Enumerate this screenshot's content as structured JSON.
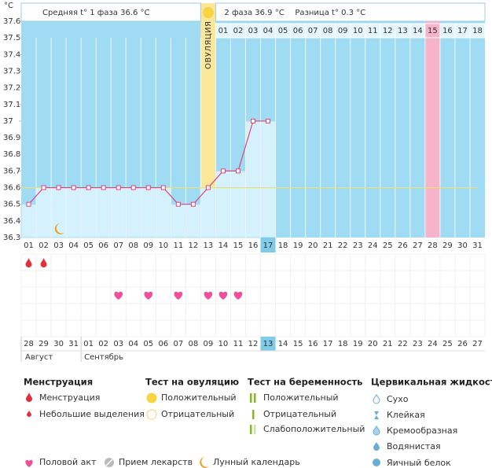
{
  "chart_data": {
    "type": "line",
    "y_unit": "°C",
    "header": {
      "phase1": "Средняя t° 1 фаза 36.6 °C",
      "phase2": "2 фаза 36.9 °C",
      "difference": "Разница t° 0.3 °C"
    },
    "ovulation": {
      "label": "ОВУЛЯЦИЯ",
      "day": "13"
    },
    "categories": [
      "01",
      "02",
      "03",
      "04",
      "05",
      "06",
      "07",
      "08",
      "09",
      "10",
      "11",
      "12",
      "13",
      "14",
      "15",
      "16",
      "17",
      "18",
      "19",
      "20",
      "21",
      "22",
      "23",
      "24",
      "25",
      "26",
      "27",
      "28",
      "29",
      "30",
      "31"
    ],
    "values": [
      36.5,
      36.6,
      36.6,
      36.6,
      36.6,
      36.6,
      36.6,
      36.6,
      36.6,
      36.6,
      36.5,
      36.5,
      36.6,
      36.7,
      36.7,
      37,
      37,
      null,
      null,
      null,
      null,
      null,
      null,
      null,
      null,
      null,
      null,
      null,
      null,
      null,
      null
    ],
    "phase2_days": [
      "01",
      "02",
      "03",
      "04",
      "05",
      "06",
      "07",
      "08",
      "09",
      "10",
      "11",
      "12",
      "13",
      "14",
      "15",
      "16",
      "17",
      "18"
    ],
    "highlight_phase2_day": "15",
    "today": "17",
    "cover_line": 36.6,
    "ylim": [
      36.3,
      37.6
    ],
    "yticks": [
      37.6,
      37.5,
      37.4,
      37.3,
      37.2,
      37.1,
      37,
      36.9,
      36.8,
      36.7,
      36.6,
      36.5,
      36.4,
      36.3
    ],
    "line_color": "#e0437a",
    "menstruation_days": [
      "01",
      "02"
    ],
    "intercourse_days": [
      "07",
      "09",
      "11",
      "13",
      "14",
      "15"
    ],
    "lunar_days": [
      "03"
    ],
    "dates": [
      "28",
      "29",
      "30",
      "31",
      "01",
      "02",
      "03",
      "04",
      "05",
      "06",
      "07",
      "08",
      "09",
      "10",
      "11",
      "12",
      "13",
      "14",
      "15",
      "16",
      "17",
      "18",
      "19",
      "20",
      "21",
      "22",
      "23",
      "24",
      "25",
      "26",
      "27"
    ],
    "red_dates": [
      "28",
      "29",
      "04",
      "05",
      "11",
      "12",
      "18",
      "19",
      "25",
      "26"
    ],
    "today_date": "13",
    "months": [
      "Август",
      "Сентябрь"
    ]
  },
  "legend": {
    "menstruation": {
      "title": "Менструация",
      "items": [
        "Менструация",
        "Небольшие выделения"
      ]
    },
    "ovulation_test": {
      "title": "Тест на овуляцию",
      "items": [
        "Положительный",
        "Отрицательный"
      ]
    },
    "pregnancy_test": {
      "title": "Тест на беременность",
      "items": [
        "Положительный",
        "Отрицательный",
        "Слабоположительный"
      ]
    },
    "cervical": {
      "title": "Цервикальная жидкость",
      "items": [
        "Сухо",
        "Клейкая",
        "Кремообразная",
        "Водянистая",
        "Яичный белок"
      ]
    },
    "other": [
      "Половой акт",
      "Прием лекарств",
      "Лунный календарь"
    ]
  }
}
